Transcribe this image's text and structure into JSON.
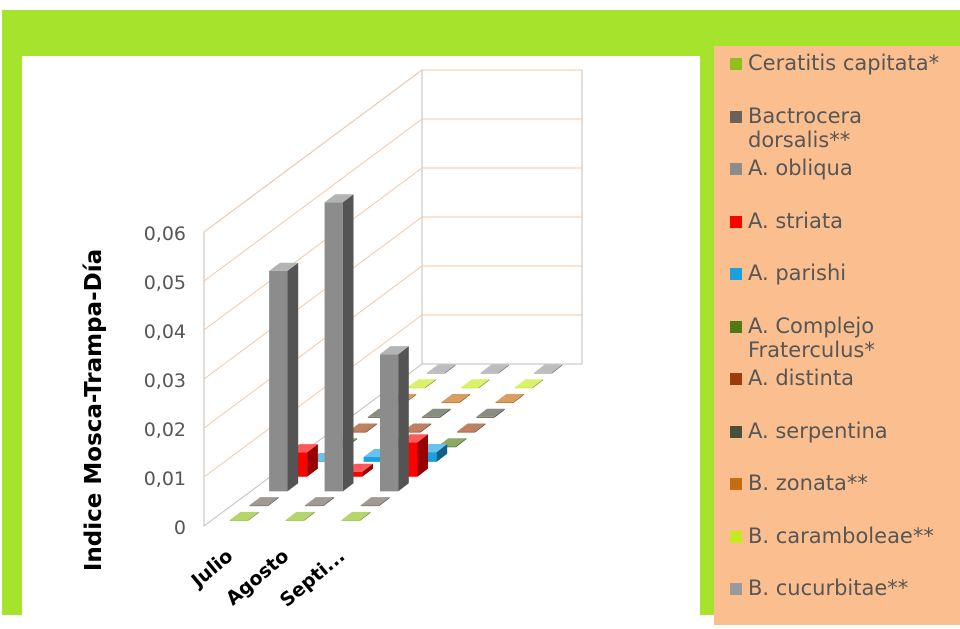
{
  "chart_data": {
    "type": "bar",
    "title": "",
    "ylabel": "Indice Mosca-Trampa-Día",
    "xlabel": "",
    "categories": [
      "Julio",
      "Agosto",
      "Septi..."
    ],
    "ylim": [
      0,
      0.06
    ],
    "yticks": [
      "0",
      "0,01",
      "0,02",
      "0,03",
      "0,04",
      "0,05",
      "0,06"
    ],
    "grid": true,
    "legend_position": "right",
    "series": [
      {
        "name": "Ceratitis capitata*",
        "color": "#8fbf1f",
        "values": [
          0,
          0,
          0
        ]
      },
      {
        "name": "Bactrocera dorsalis**",
        "color": "#6d625a",
        "values": [
          0,
          0,
          0
        ]
      },
      {
        "name": "A. obliqua",
        "color": "#8c8c8c",
        "values": [
          0.045,
          0.059,
          0.028
        ]
      },
      {
        "name": "A. striata",
        "color": "#ff0000",
        "values": [
          0.005,
          0.001,
          0.007
        ]
      },
      {
        "name": "A. parishi",
        "color": "#19a0e0",
        "values": [
          0,
          0.001,
          0.002
        ]
      },
      {
        "name": "A. Complejo Fraterculus*",
        "color": "#4f7a14",
        "values": [
          0,
          0,
          0
        ]
      },
      {
        "name": "A. distinta",
        "color": "#9a3c0e",
        "values": [
          0,
          0,
          0
        ]
      },
      {
        "name": "A. serpentina",
        "color": "#4a4f3a",
        "values": [
          0,
          0,
          0
        ]
      },
      {
        "name": "B. zonata**",
        "color": "#c46c0e",
        "values": [
          0,
          0,
          0
        ]
      },
      {
        "name": "B. caramboleae**",
        "color": "#c6ea20",
        "values": [
          0,
          0,
          0
        ]
      },
      {
        "name": "B. cucurbitae**",
        "color": "#9a9a9a",
        "values": [
          0,
          0,
          0
        ]
      }
    ]
  }
}
